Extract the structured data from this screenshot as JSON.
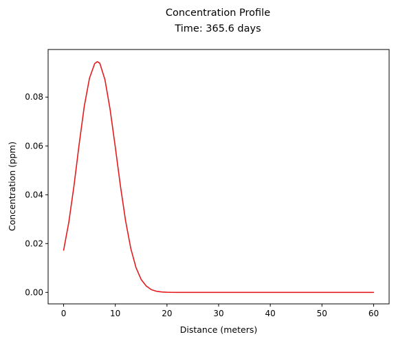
{
  "chart_data": {
    "type": "line",
    "title": "Concentration Profile",
    "subtitle": "Time: 365.6 days",
    "xlabel": "Distance (meters)",
    "ylabel": "Concentration  (ppm)",
    "xlim": [
      -3,
      63
    ],
    "ylim": [
      -0.0047,
      0.0995
    ],
    "xticks": [
      0,
      10,
      20,
      30,
      40,
      50,
      60
    ],
    "xtick_labels": [
      "0",
      "10",
      "20",
      "30",
      "40",
      "50",
      "60"
    ],
    "yticks": [
      0.0,
      0.02,
      0.04,
      0.06,
      0.08
    ],
    "ytick_labels": [
      "0.00",
      "0.02",
      "0.04",
      "0.06",
      "0.08"
    ],
    "grid": false,
    "series": [
      {
        "color": "#e41a1c",
        "x": [
          0,
          1,
          2,
          3,
          4,
          5,
          6,
          6.5,
          7,
          8,
          9,
          10,
          11,
          12,
          13,
          14,
          15,
          16,
          17,
          18,
          19,
          20,
          21,
          22,
          23,
          25,
          30,
          35,
          40,
          45,
          50,
          55,
          60
        ],
        "y": [
          0.0173,
          0.0287,
          0.0436,
          0.0606,
          0.0763,
          0.0877,
          0.0937,
          0.0945,
          0.0939,
          0.0871,
          0.0749,
          0.0595,
          0.0435,
          0.0292,
          0.018,
          0.0102,
          0.0053,
          0.0026,
          0.0011,
          0.00045,
          0.00017,
          6e-05,
          2e-05,
          1e-05,
          0,
          0,
          0,
          0,
          0,
          0,
          0,
          0,
          0
        ]
      }
    ]
  }
}
